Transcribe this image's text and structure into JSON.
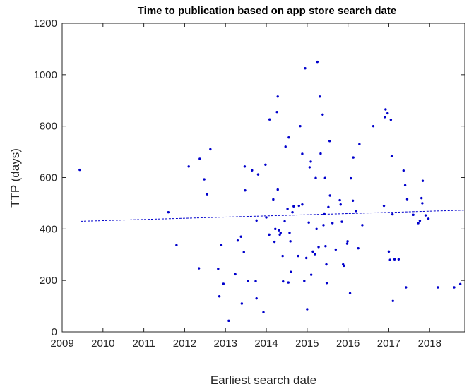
{
  "chart_data": {
    "type": "scatter",
    "title": "Time to publication based on app store search date",
    "x_label": "Earliest search date",
    "y_label": "TTP (days)",
    "color": "#0000cc",
    "xlim": [
      2009,
      2018.86
    ],
    "ylim": [
      0,
      1200
    ],
    "xticks": [
      2009,
      2010,
      2011,
      2012,
      2013,
      2014,
      2015,
      2016,
      2017,
      2018
    ],
    "yticks": [
      0,
      200,
      400,
      600,
      800,
      1000,
      1200
    ],
    "x": [
      2009.43,
      2011.6,
      2011.8,
      2012.1,
      2012.35,
      2012.37,
      2012.48,
      2012.55,
      2012.63,
      2012.82,
      2012.85,
      2012.9,
      2012.95,
      2013.08,
      2013.24,
      2013.3,
      2013.38,
      2013.4,
      2013.45,
      2013.47,
      2013.48,
      2013.55,
      2013.65,
      2013.74,
      2013.76,
      2013.76,
      2013.8,
      2013.93,
      2013.98,
      2014.0,
      2014.07,
      2014.08,
      2014.17,
      2014.2,
      2014.22,
      2014.26,
      2014.28,
      2014.28,
      2014.31,
      2014.33,
      2014.35,
      2014.4,
      2014.41,
      2014.45,
      2014.47,
      2014.52,
      2014.54,
      2014.55,
      2014.57,
      2014.59,
      2014.6,
      2014.64,
      2014.67,
      2014.78,
      2014.8,
      2014.83,
      2014.88,
      2014.88,
      2014.93,
      2014.95,
      2014.98,
      2015.0,
      2015.04,
      2015.06,
      2015.09,
      2015.1,
      2015.14,
      2015.19,
      2015.21,
      2015.23,
      2015.25,
      2015.28,
      2015.31,
      2015.33,
      2015.38,
      2015.4,
      2015.42,
      2015.44,
      2015.45,
      2015.47,
      2015.48,
      2015.52,
      2015.55,
      2015.56,
      2015.62,
      2015.7,
      2015.8,
      2015.82,
      2015.85,
      2015.88,
      2015.9,
      2015.98,
      2015.99,
      2016.05,
      2016.07,
      2016.12,
      2016.13,
      2016.2,
      2016.25,
      2016.28,
      2016.35,
      2016.62,
      2016.88,
      2016.9,
      2016.92,
      2016.97,
      2017.0,
      2017.03,
      2017.05,
      2017.07,
      2017.09,
      2017.1,
      2017.14,
      2017.24,
      2017.36,
      2017.4,
      2017.42,
      2017.45,
      2017.6,
      2017.72,
      2017.76,
      2017.8,
      2017.82,
      2017.83,
      2017.9,
      2017.97,
      2018.2,
      2018.6,
      2018.75
    ],
    "values": [
      630,
      465,
      337,
      643,
      247,
      673,
      593,
      535,
      710,
      245,
      138,
      337,
      187,
      43,
      224,
      355,
      370,
      110,
      310,
      643,
      550,
      197,
      628,
      197,
      433,
      130,
      612,
      76,
      650,
      445,
      378,
      826,
      515,
      350,
      400,
      855,
      915,
      553,
      395,
      378,
      385,
      295,
      196,
      430,
      720,
      478,
      192,
      756,
      385,
      352,
      233,
      465,
      488,
      295,
      490,
      800,
      692,
      495,
      198,
      1025,
      287,
      88,
      425,
      640,
      662,
      222,
      312,
      302,
      598,
      400,
      1050,
      330,
      915,
      693,
      845,
      415,
      460,
      598,
      333,
      262,
      190,
      485,
      742,
      530,
      423,
      320,
      512,
      495,
      428,
      262,
      257,
      343,
      352,
      150,
      597,
      510,
      678,
      470,
      325,
      730,
      415,
      800,
      490,
      835,
      865,
      850,
      312,
      280,
      825,
      683,
      457,
      120,
      282,
      282,
      627,
      570,
      173,
      516,
      455,
      423,
      432,
      520,
      500,
      587,
      453,
      440,
      173,
      173,
      186
    ],
    "trend": {
      "x": [
        2009.45,
        2018.86
      ],
      "y": [
        430,
        473
      ]
    }
  }
}
